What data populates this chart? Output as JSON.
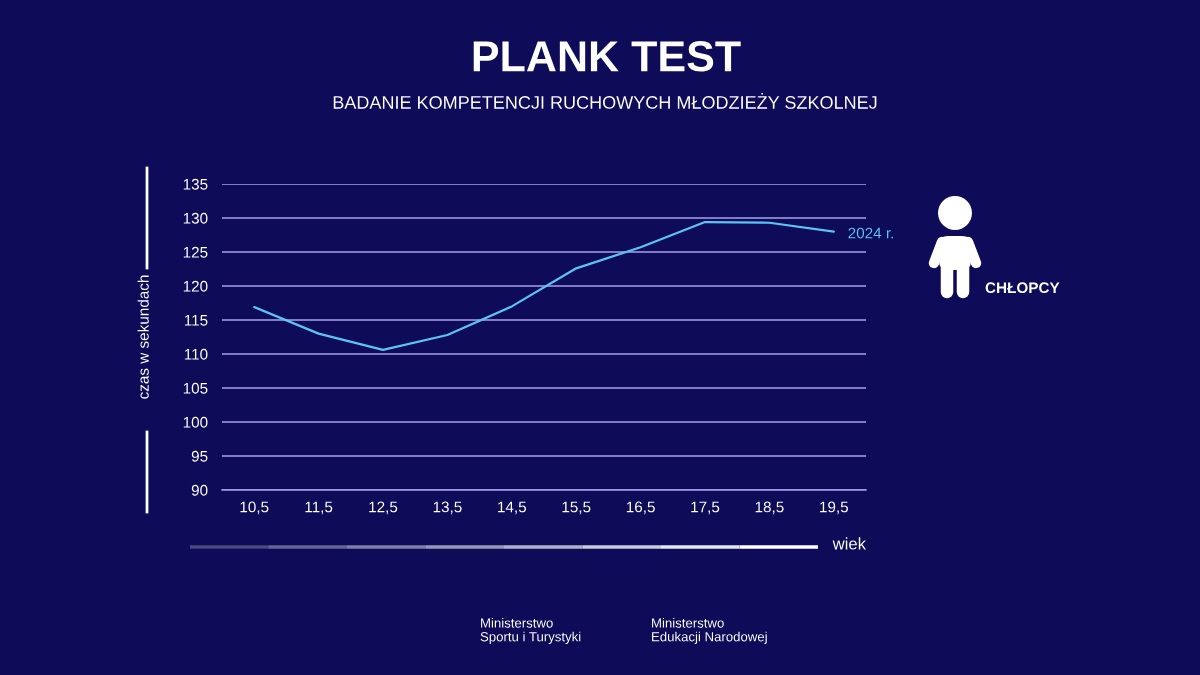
{
  "chart_data": {
    "type": "line",
    "title": "PLANK TEST",
    "subtitle": "BADANIE KOMPETENCJI RUCHOWYCH MŁODZIEŻY SZKOLNEJ",
    "xlabel": "wiek",
    "ylabel": "czas w sekundach",
    "categories": [
      "10,5",
      "11,5",
      "12,5",
      "13,5",
      "14,5",
      "15,5",
      "16,5",
      "17,5",
      "18,5",
      "19,5"
    ],
    "series": [
      {
        "name": "2024 r.",
        "color": "#5cc4f2",
        "values": [
          116.9,
          113.0,
          110.6,
          112.8,
          117.0,
          122.6,
          125.7,
          129.4,
          129.3,
          128.0
        ]
      }
    ],
    "ylim": [
      90,
      135
    ],
    "yticks": [
      90,
      95,
      100,
      105,
      110,
      115,
      120,
      125,
      130,
      135
    ],
    "grid": "y",
    "line_style": "solid",
    "annotations": [
      "CHŁOPCY",
      "Ministerstwo\nSportu i Turystyki",
      "Ministerstwo\nEdukacji Narodowej"
    ]
  }
}
